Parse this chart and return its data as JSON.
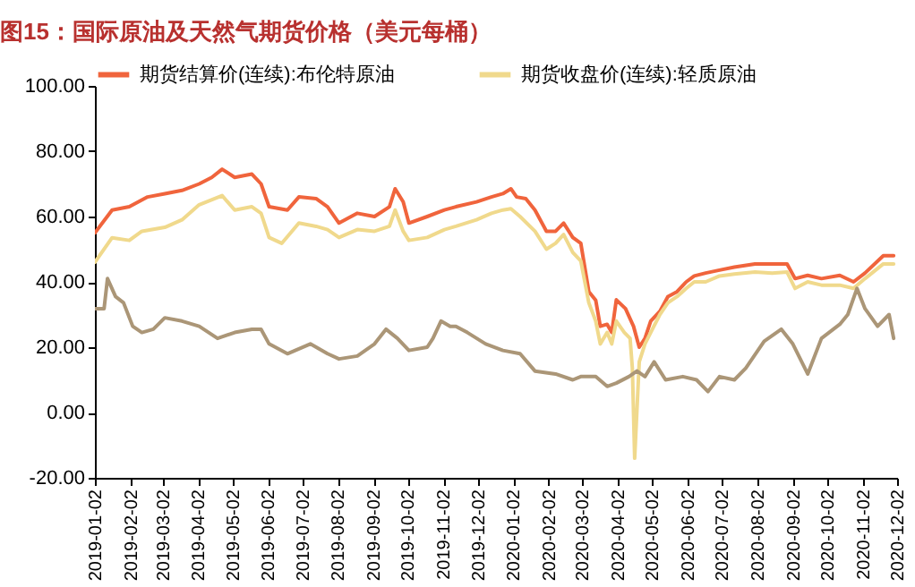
{
  "chart_data": {
    "type": "line",
    "title": "图15：国际原油及天然气期货价格（美元每桶）",
    "xlim": [
      "2019-01-02",
      "2020-12-02"
    ],
    "xticks": [
      {
        "value": "2019-01-02",
        "label": "2019-01-02"
      },
      {
        "value": "2019-02-02",
        "label": "2019-02-02"
      },
      {
        "value": "2019-03-02",
        "label": "2019-03-02"
      },
      {
        "value": "2019-04-02",
        "label": "2019-04-02"
      },
      {
        "value": "2019-05-02",
        "label": "2019-05-02"
      },
      {
        "value": "2019-06-02",
        "label": "2019-06-02"
      },
      {
        "value": "2019-07-02",
        "label": "2019-07-02"
      },
      {
        "value": "2019-08-02",
        "label": "2019-08-02"
      },
      {
        "value": "2019-09-02",
        "label": "2019-09-02"
      },
      {
        "value": "2019-10-02",
        "label": "2019-10-02"
      },
      {
        "value": "2019-11-02",
        "label": "2019-11-02"
      },
      {
        "value": "2019-12-02",
        "label": "2019-12-02"
      },
      {
        "value": "2020-01-02",
        "label": "2020-01-02"
      },
      {
        "value": "2020-02-02",
        "label": "2020-02-02"
      },
      {
        "value": "2020-03-02",
        "label": "2020-03-02"
      },
      {
        "value": "2020-04-02",
        "label": "2020-04-02"
      },
      {
        "value": "2020-05-02",
        "label": "2020-05-02"
      },
      {
        "value": "2020-06-02",
        "label": "2020-06-02"
      },
      {
        "value": "2020-07-02",
        "label": "2020-07-02"
      },
      {
        "value": "2020-08-02",
        "label": "2020-08-02"
      },
      {
        "value": "2020-09-02",
        "label": "2020-09-02"
      },
      {
        "value": "2020-10-02",
        "label": "2020-10-02"
      },
      {
        "value": "2020-11-02",
        "label": "2020-11-02"
      },
      {
        "value": "2020-12-02",
        "label": "2020-12-02"
      }
    ],
    "ylim": [
      -20,
      100
    ],
    "yticks": [
      {
        "value": -20,
        "label": "-20.00"
      },
      {
        "value": 0,
        "label": "0.00"
      },
      {
        "value": 20,
        "label": "20.00"
      },
      {
        "value": 40,
        "label": "40.00"
      },
      {
        "value": 60,
        "label": "60.00"
      },
      {
        "value": 80,
        "label": "80.00"
      },
      {
        "value": 100,
        "label": "100.00"
      }
    ],
    "grid": false,
    "legend": "top",
    "marker": "none",
    "line_style": "solid",
    "series": [
      {
        "name": "期货结算价(连续):布伦特原油",
        "color": "#f0643c",
        "x": [
          "2019-01-02",
          "2019-01-17",
          "2019-02-01",
          "2019-02-17",
          "2019-03-04",
          "2019-03-19",
          "2019-04-03",
          "2019-04-14",
          "2019-04-23",
          "2019-05-04",
          "2019-05-19",
          "2019-05-27",
          "2019-06-03",
          "2019-06-19",
          "2019-06-29",
          "2019-07-14",
          "2019-07-24",
          "2019-08-03",
          "2019-08-19",
          "2019-09-03",
          "2019-09-16",
          "2019-09-21",
          "2019-09-28",
          "2019-10-03",
          "2019-10-19",
          "2019-11-03",
          "2019-11-13",
          "2019-12-01",
          "2019-12-14",
          "2019-12-24",
          "2019-12-31",
          "2020-01-05",
          "2020-01-13",
          "2020-01-21",
          "2020-01-31",
          "2020-02-08",
          "2020-02-15",
          "2020-02-23",
          "2020-03-01",
          "2020-03-08",
          "2020-03-14",
          "2020-03-18",
          "2020-03-24",
          "2020-03-28",
          "2020-04-01",
          "2020-04-09",
          "2020-04-16",
          "2020-04-21",
          "2020-04-26",
          "2020-05-01",
          "2020-05-09",
          "2020-05-16",
          "2020-05-24",
          "2020-06-01",
          "2020-06-08",
          "2020-06-18",
          "2020-06-30",
          "2020-07-13",
          "2020-07-31",
          "2020-08-15",
          "2020-08-28",
          "2020-09-04",
          "2020-09-15",
          "2020-09-27",
          "2020-10-13",
          "2020-10-25",
          "2020-11-04",
          "2020-11-20",
          "2020-11-29"
        ],
        "values": [
          55,
          62,
          63,
          66,
          67,
          68,
          70,
          72,
          74.5,
          72,
          73,
          70,
          63,
          62,
          66,
          65.5,
          63,
          58,
          61,
          60,
          63,
          68.5,
          64.5,
          58,
          60,
          62,
          63,
          64.5,
          66,
          67,
          68.5,
          66,
          65.5,
          62,
          55.5,
          55.5,
          58,
          53.6,
          51.8,
          37,
          34.4,
          26.4,
          27,
          24.5,
          34.5,
          31.8,
          26.4,
          20,
          22.7,
          28,
          31,
          35.5,
          37,
          40,
          41.8,
          42.7,
          43.6,
          44.5,
          45.5,
          45.5,
          45.5,
          41,
          42,
          41,
          42,
          40,
          42.7,
          48,
          48
        ]
      },
      {
        "name": "期货收盘价(连续):轻质原油",
        "color": "#f0d98c",
        "x": [
          "2019-01-02",
          "2019-01-17",
          "2019-02-01",
          "2019-02-12",
          "2019-03-04",
          "2019-03-19",
          "2019-04-03",
          "2019-04-23",
          "2019-05-04",
          "2019-05-19",
          "2019-05-27",
          "2019-06-03",
          "2019-06-14",
          "2019-06-29",
          "2019-07-14",
          "2019-07-24",
          "2019-08-03",
          "2019-08-19",
          "2019-09-03",
          "2019-09-16",
          "2019-09-21",
          "2019-09-28",
          "2019-10-03",
          "2019-10-19",
          "2019-11-03",
          "2019-11-13",
          "2019-12-01",
          "2019-12-14",
          "2019-12-24",
          "2019-12-31",
          "2020-01-08",
          "2020-01-21",
          "2020-01-31",
          "2020-02-08",
          "2020-02-15",
          "2020-02-23",
          "2020-03-01",
          "2020-03-08",
          "2020-03-14",
          "2020-03-18",
          "2020-03-24",
          "2020-03-28",
          "2020-04-01",
          "2020-04-08",
          "2020-04-13",
          "2020-04-15",
          "2020-04-17",
          "2020-04-21",
          "2020-04-26",
          "2020-05-01",
          "2020-05-09",
          "2020-05-16",
          "2020-05-24",
          "2020-06-01",
          "2020-06-08",
          "2020-06-18",
          "2020-06-30",
          "2020-07-13",
          "2020-07-31",
          "2020-08-15",
          "2020-08-28",
          "2020-09-04",
          "2020-09-15",
          "2020-09-27",
          "2020-10-13",
          "2020-10-25",
          "2020-11-04",
          "2020-11-20",
          "2020-11-29"
        ],
        "values": [
          46,
          53.5,
          52.7,
          55.5,
          56.7,
          59,
          63.6,
          66.4,
          62,
          63,
          61,
          53.6,
          51.8,
          58,
          57,
          56,
          53.6,
          56,
          55.5,
          57,
          62,
          55.5,
          52.7,
          53.6,
          56,
          57,
          59,
          61,
          62,
          62.4,
          60,
          55.5,
          50,
          51.8,
          54.5,
          49,
          46.4,
          33.6,
          28,
          21,
          24.5,
          21,
          28,
          24.5,
          22.7,
          13.6,
          -14,
          15.5,
          21,
          24.5,
          30,
          33.6,
          35.5,
          38,
          40,
          40,
          41.8,
          42.4,
          43,
          42.7,
          43,
          38,
          40,
          39,
          39,
          38,
          41,
          45.5,
          45.5
        ]
      },
      {
        "color": "#ab9677",
        "x": [
          "2019-01-02",
          "2019-01-10",
          "2019-01-13",
          "2019-01-20",
          "2019-01-27",
          "2019-02-04",
          "2019-02-12",
          "2019-02-22",
          "2019-03-04",
          "2019-03-19",
          "2019-04-03",
          "2019-04-19",
          "2019-05-04",
          "2019-05-19",
          "2019-05-27",
          "2019-06-03",
          "2019-06-19",
          "2019-07-09",
          "2019-07-24",
          "2019-08-03",
          "2019-08-19",
          "2019-09-03",
          "2019-09-13",
          "2019-09-23",
          "2019-10-03",
          "2019-10-19",
          "2019-10-24",
          "2019-10-31",
          "2019-11-08",
          "2019-11-13",
          "2019-11-23",
          "2019-12-09",
          "2019-12-24",
          "2020-01-08",
          "2020-01-21",
          "2020-02-08",
          "2020-02-23",
          "2020-03-01",
          "2020-03-14",
          "2020-03-24",
          "2020-04-01",
          "2020-04-12",
          "2020-04-19",
          "2020-04-26",
          "2020-05-04",
          "2020-05-14",
          "2020-05-29",
          "2020-06-10",
          "2020-06-20",
          "2020-06-30",
          "2020-07-13",
          "2020-07-23",
          "2020-08-08",
          "2020-08-23",
          "2020-09-02",
          "2020-09-15",
          "2020-09-27",
          "2020-10-13",
          "2020-10-20",
          "2020-10-28",
          "2020-11-04",
          "2020-11-15",
          "2020-11-25",
          "2020-11-29"
        ],
        "values": [
          31.8,
          31.8,
          41,
          35.5,
          33.6,
          26.4,
          24.5,
          25.5,
          29,
          28,
          26.4,
          22.7,
          24.5,
          25.5,
          25.5,
          21,
          18,
          21,
          18,
          16.4,
          17.3,
          21,
          25.5,
          22.7,
          19,
          20,
          22.7,
          28,
          26.4,
          26.4,
          24.5,
          21,
          19,
          18,
          12.7,
          11.8,
          10,
          11,
          11,
          8,
          9,
          11,
          12.7,
          11,
          15.5,
          10,
          11,
          10,
          6.4,
          11,
          10,
          13.6,
          21.8,
          25.5,
          21,
          11.8,
          22.7,
          27,
          30,
          38,
          31.8,
          26.4,
          30,
          22.7
        ]
      }
    ]
  }
}
